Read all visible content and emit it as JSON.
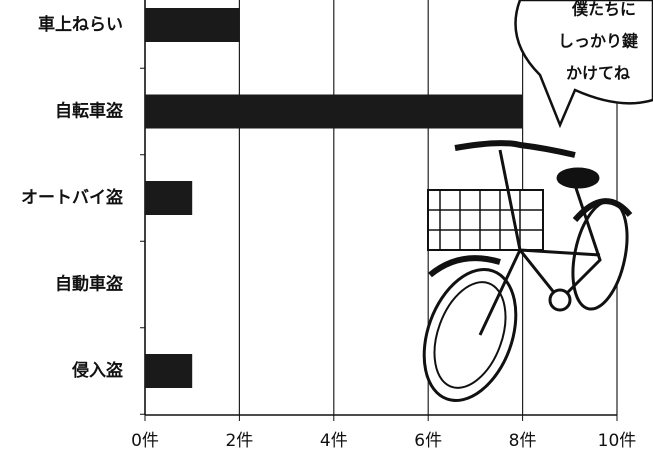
{
  "chart_data": {
    "type": "bar",
    "orientation": "horizontal",
    "categories": [
      "車上ねらい",
      "自転車盗",
      "オートバイ盗",
      "自動車盗",
      "侵入盗"
    ],
    "values": [
      2,
      8,
      1,
      0,
      1
    ],
    "color": "#1a1a1a",
    "xlim": [
      0,
      10
    ],
    "xticks": [
      {
        "value": 0,
        "label": "0件"
      },
      {
        "value": 2,
        "label": "2件"
      },
      {
        "value": 4,
        "label": "4件"
      },
      {
        "value": 6,
        "label": "6件"
      },
      {
        "value": 8,
        "label": "8件"
      },
      {
        "value": 10,
        "label": "10件"
      }
    ],
    "grid": true,
    "annotation": [
      "僕たちに",
      "しっかり鍵",
      "かけてね"
    ]
  }
}
